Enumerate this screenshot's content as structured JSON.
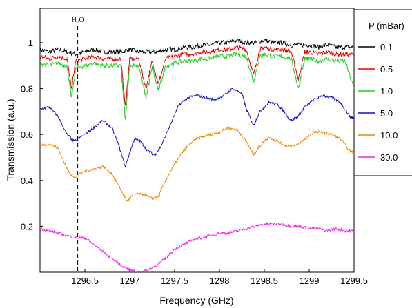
{
  "chart_data": {
    "type": "line",
    "title": "",
    "xlabel": "Frequency (GHz)",
    "ylabel": "Transmission (a.u.)",
    "xlim": [
      1296.0,
      1299.5
    ],
    "ylim": [
      0.0,
      1.15
    ],
    "x_ticks": [
      {
        "value": 1296.5,
        "label": "1296.5"
      },
      {
        "value": 1297.0,
        "label": "1297"
      },
      {
        "value": 1297.5,
        "label": "1297.5"
      },
      {
        "value": 1298.0,
        "label": "1298"
      },
      {
        "value": 1298.5,
        "label": "1298.5"
      },
      {
        "value": 1299.0,
        "label": "1299"
      },
      {
        "value": 1299.5,
        "label": "1299.5"
      }
    ],
    "y_ticks": [
      {
        "value": 0.2,
        "label": "0.2"
      },
      {
        "value": 0.4,
        "label": "0.4"
      },
      {
        "value": 0.6,
        "label": "0.6"
      },
      {
        "value": 0.8,
        "label": "0.8"
      },
      {
        "value": 1.0,
        "label": "1"
      }
    ],
    "grid": false,
    "legend": {
      "title": "P (mBar)",
      "position": "right-outside"
    },
    "annotations": [
      {
        "text": "H₂O",
        "x": 1296.42,
        "style": "dashed-vertical-line"
      }
    ],
    "series": [
      {
        "name": "0.1",
        "color": "#000000",
        "points": [
          [
            1296.0,
            0.97
          ],
          [
            1296.1,
            0.96
          ],
          [
            1296.2,
            0.97
          ],
          [
            1296.3,
            0.96
          ],
          [
            1296.4,
            0.95
          ],
          [
            1296.5,
            0.96
          ],
          [
            1296.6,
            0.97
          ],
          [
            1296.7,
            0.96
          ],
          [
            1296.8,
            0.96
          ],
          [
            1296.9,
            0.96
          ],
          [
            1297.0,
            0.97
          ],
          [
            1297.1,
            0.96
          ],
          [
            1297.2,
            0.96
          ],
          [
            1297.3,
            0.96
          ],
          [
            1297.4,
            0.97
          ],
          [
            1297.5,
            0.97
          ],
          [
            1297.6,
            0.98
          ],
          [
            1297.7,
            0.98
          ],
          [
            1297.8,
            0.99
          ],
          [
            1297.9,
            0.99
          ],
          [
            1298.0,
            1.0
          ],
          [
            1298.1,
            1.0
          ],
          [
            1298.2,
            1.01
          ],
          [
            1298.3,
            1.0
          ],
          [
            1298.4,
            1.0
          ],
          [
            1298.5,
            1.01
          ],
          [
            1298.6,
            1.0
          ],
          [
            1298.7,
            1.0
          ],
          [
            1298.8,
            0.99
          ],
          [
            1298.9,
            0.99
          ],
          [
            1299.0,
            0.99
          ],
          [
            1299.1,
            0.98
          ],
          [
            1299.2,
            0.99
          ],
          [
            1299.3,
            0.98
          ],
          [
            1299.4,
            0.98
          ],
          [
            1299.5,
            0.98
          ]
        ]
      },
      {
        "name": "0.5",
        "color": "#e00000",
        "points": [
          [
            1296.0,
            0.94
          ],
          [
            1296.1,
            0.93
          ],
          [
            1296.2,
            0.94
          ],
          [
            1296.3,
            0.93
          ],
          [
            1296.35,
            0.8
          ],
          [
            1296.4,
            0.92
          ],
          [
            1296.5,
            0.93
          ],
          [
            1296.6,
            0.94
          ],
          [
            1296.7,
            0.93
          ],
          [
            1296.8,
            0.93
          ],
          [
            1296.9,
            0.93
          ],
          [
            1296.95,
            0.72
          ],
          [
            1297.0,
            0.93
          ],
          [
            1297.1,
            0.93
          ],
          [
            1297.18,
            0.8
          ],
          [
            1297.25,
            0.92
          ],
          [
            1297.32,
            0.82
          ],
          [
            1297.4,
            0.93
          ],
          [
            1297.5,
            0.94
          ],
          [
            1297.6,
            0.95
          ],
          [
            1297.7,
            0.95
          ],
          [
            1297.8,
            0.96
          ],
          [
            1297.9,
            0.96
          ],
          [
            1298.0,
            0.97
          ],
          [
            1298.1,
            0.97
          ],
          [
            1298.2,
            0.98
          ],
          [
            1298.3,
            0.97
          ],
          [
            1298.38,
            0.86
          ],
          [
            1298.45,
            0.97
          ],
          [
            1298.5,
            0.98
          ],
          [
            1298.6,
            0.97
          ],
          [
            1298.7,
            0.97
          ],
          [
            1298.8,
            0.96
          ],
          [
            1298.88,
            0.84
          ],
          [
            1298.95,
            0.96
          ],
          [
            1299.0,
            0.96
          ],
          [
            1299.1,
            0.95
          ],
          [
            1299.2,
            0.96
          ],
          [
            1299.3,
            0.95
          ],
          [
            1299.4,
            0.95
          ],
          [
            1299.5,
            0.95
          ]
        ]
      },
      {
        "name": "1.0",
        "color": "#22cc22",
        "points": [
          [
            1296.0,
            0.91
          ],
          [
            1296.1,
            0.9
          ],
          [
            1296.2,
            0.91
          ],
          [
            1296.3,
            0.9
          ],
          [
            1296.35,
            0.76
          ],
          [
            1296.4,
            0.89
          ],
          [
            1296.5,
            0.9
          ],
          [
            1296.6,
            0.91
          ],
          [
            1296.7,
            0.9
          ],
          [
            1296.8,
            0.9
          ],
          [
            1296.9,
            0.9
          ],
          [
            1296.95,
            0.66
          ],
          [
            1297.0,
            0.9
          ],
          [
            1297.1,
            0.9
          ],
          [
            1297.18,
            0.76
          ],
          [
            1297.25,
            0.89
          ],
          [
            1297.32,
            0.79
          ],
          [
            1297.4,
            0.9
          ],
          [
            1297.5,
            0.91
          ],
          [
            1297.6,
            0.92
          ],
          [
            1297.7,
            0.92
          ],
          [
            1297.8,
            0.93
          ],
          [
            1297.9,
            0.93
          ],
          [
            1298.0,
            0.94
          ],
          [
            1298.1,
            0.94
          ],
          [
            1298.2,
            0.95
          ],
          [
            1298.3,
            0.94
          ],
          [
            1298.38,
            0.83
          ],
          [
            1298.45,
            0.94
          ],
          [
            1298.5,
            0.95
          ],
          [
            1298.6,
            0.94
          ],
          [
            1298.7,
            0.94
          ],
          [
            1298.8,
            0.93
          ],
          [
            1298.88,
            0.8
          ],
          [
            1298.95,
            0.93
          ],
          [
            1299.0,
            0.93
          ],
          [
            1299.1,
            0.92
          ],
          [
            1299.2,
            0.93
          ],
          [
            1299.3,
            0.92
          ],
          [
            1299.4,
            0.92
          ],
          [
            1299.5,
            0.8
          ]
        ]
      },
      {
        "name": "5.0",
        "color": "#1010c0",
        "points": [
          [
            1296.0,
            0.71
          ],
          [
            1296.1,
            0.72
          ],
          [
            1296.2,
            0.68
          ],
          [
            1296.3,
            0.6
          ],
          [
            1296.38,
            0.57
          ],
          [
            1296.5,
            0.6
          ],
          [
            1296.6,
            0.63
          ],
          [
            1296.7,
            0.66
          ],
          [
            1296.8,
            0.63
          ],
          [
            1296.88,
            0.55
          ],
          [
            1296.95,
            0.46
          ],
          [
            1297.05,
            0.58
          ],
          [
            1297.12,
            0.57
          ],
          [
            1297.2,
            0.53
          ],
          [
            1297.28,
            0.51
          ],
          [
            1297.35,
            0.55
          ],
          [
            1297.45,
            0.64
          ],
          [
            1297.55,
            0.73
          ],
          [
            1297.65,
            0.76
          ],
          [
            1297.75,
            0.77
          ],
          [
            1297.85,
            0.76
          ],
          [
            1297.95,
            0.75
          ],
          [
            1298.05,
            0.77
          ],
          [
            1298.15,
            0.8
          ],
          [
            1298.25,
            0.78
          ],
          [
            1298.3,
            0.71
          ],
          [
            1298.38,
            0.64
          ],
          [
            1298.45,
            0.7
          ],
          [
            1298.55,
            0.74
          ],
          [
            1298.65,
            0.73
          ],
          [
            1298.72,
            0.7
          ],
          [
            1298.8,
            0.66
          ],
          [
            1298.88,
            0.68
          ],
          [
            1298.95,
            0.72
          ],
          [
            1299.05,
            0.75
          ],
          [
            1299.15,
            0.77
          ],
          [
            1299.25,
            0.76
          ],
          [
            1299.35,
            0.74
          ],
          [
            1299.45,
            0.68
          ],
          [
            1299.5,
            0.67
          ]
        ]
      },
      {
        "name": "10.0",
        "color": "#ee8800",
        "points": [
          [
            1296.0,
            0.55
          ],
          [
            1296.1,
            0.56
          ],
          [
            1296.2,
            0.54
          ],
          [
            1296.3,
            0.45
          ],
          [
            1296.38,
            0.41
          ],
          [
            1296.5,
            0.44
          ],
          [
            1296.6,
            0.45
          ],
          [
            1296.7,
            0.46
          ],
          [
            1296.8,
            0.43
          ],
          [
            1296.9,
            0.36
          ],
          [
            1296.97,
            0.31
          ],
          [
            1297.05,
            0.34
          ],
          [
            1297.15,
            0.34
          ],
          [
            1297.25,
            0.32
          ],
          [
            1297.32,
            0.33
          ],
          [
            1297.4,
            0.4
          ],
          [
            1297.5,
            0.47
          ],
          [
            1297.6,
            0.53
          ],
          [
            1297.7,
            0.57
          ],
          [
            1297.8,
            0.59
          ],
          [
            1297.9,
            0.6
          ],
          [
            1298.0,
            0.61
          ],
          [
            1298.1,
            0.63
          ],
          [
            1298.2,
            0.62
          ],
          [
            1298.3,
            0.57
          ],
          [
            1298.38,
            0.51
          ],
          [
            1298.45,
            0.55
          ],
          [
            1298.55,
            0.59
          ],
          [
            1298.65,
            0.57
          ],
          [
            1298.75,
            0.55
          ],
          [
            1298.85,
            0.55
          ],
          [
            1298.95,
            0.58
          ],
          [
            1299.05,
            0.61
          ],
          [
            1299.15,
            0.61
          ],
          [
            1299.25,
            0.6
          ],
          [
            1299.35,
            0.58
          ],
          [
            1299.45,
            0.53
          ],
          [
            1299.5,
            0.52
          ]
        ]
      },
      {
        "name": "30.0",
        "color": "#ee22ee",
        "points": [
          [
            1296.0,
            0.19
          ],
          [
            1296.1,
            0.18
          ],
          [
            1296.2,
            0.17
          ],
          [
            1296.3,
            0.16
          ],
          [
            1296.4,
            0.15
          ],
          [
            1296.5,
            0.15
          ],
          [
            1296.6,
            0.12
          ],
          [
            1296.7,
            0.09
          ],
          [
            1296.8,
            0.06
          ],
          [
            1296.9,
            0.03
          ],
          [
            1297.0,
            0.01
          ],
          [
            1297.1,
            0.0
          ],
          [
            1297.2,
            0.01
          ],
          [
            1297.3,
            0.03
          ],
          [
            1297.4,
            0.06
          ],
          [
            1297.5,
            0.1
          ],
          [
            1297.6,
            0.12
          ],
          [
            1297.7,
            0.14
          ],
          [
            1297.8,
            0.15
          ],
          [
            1297.9,
            0.16
          ],
          [
            1298.0,
            0.17
          ],
          [
            1298.1,
            0.17
          ],
          [
            1298.2,
            0.18
          ],
          [
            1298.3,
            0.19
          ],
          [
            1298.4,
            0.2
          ],
          [
            1298.5,
            0.21
          ],
          [
            1298.6,
            0.21
          ],
          [
            1298.7,
            0.21
          ],
          [
            1298.8,
            0.2
          ],
          [
            1298.9,
            0.2
          ],
          [
            1299.0,
            0.19
          ],
          [
            1299.1,
            0.19
          ],
          [
            1299.2,
            0.18
          ],
          [
            1299.3,
            0.19
          ],
          [
            1299.4,
            0.18
          ],
          [
            1299.5,
            0.18
          ]
        ]
      }
    ]
  }
}
